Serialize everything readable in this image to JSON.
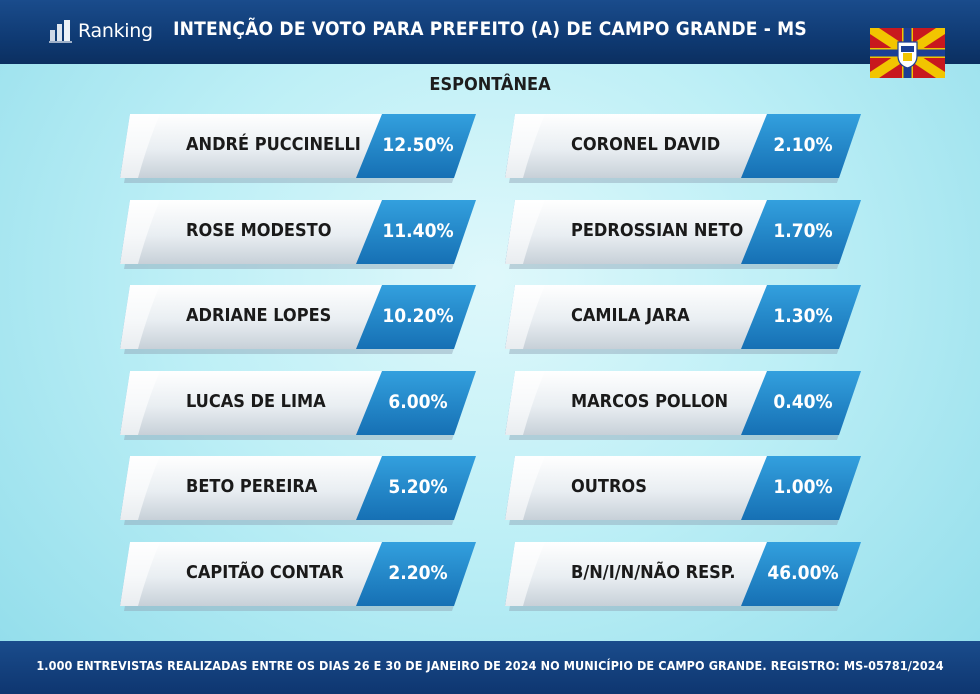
{
  "header": {
    "logo_text": "Ranking",
    "title": "INTENÇÃO DE VOTO PARA PREFEITO (A) DE CAMPO GRANDE - MS"
  },
  "chart_data": {
    "type": "table",
    "title": "INTENÇÃO DE VOTO PARA PREFEITO (A) DE CAMPO GRANDE - MS",
    "subtitle": "ESPONTÂNEA",
    "columns": [
      [
        {
          "name": "ANDRÉ PUCCINELLI",
          "value": 12.5,
          "label": "12.50%"
        },
        {
          "name": "ROSE MODESTO",
          "value": 11.4,
          "label": "11.40%"
        },
        {
          "name": "ADRIANE LOPES",
          "value": 10.2,
          "label": "10.20%"
        },
        {
          "name": "LUCAS DE LIMA",
          "value": 6.0,
          "label": "6.00%"
        },
        {
          "name": "BETO PEREIRA",
          "value": 5.2,
          "label": "5.20%"
        },
        {
          "name": "CAPITÃO CONTAR",
          "value": 2.2,
          "label": "2.20%"
        }
      ],
      [
        {
          "name": "CORONEL DAVID",
          "value": 2.1,
          "label": "2.10%"
        },
        {
          "name": "PEDROSSIAN NETO",
          "value": 1.7,
          "label": "1.70%"
        },
        {
          "name": "CAMILA JARA",
          "value": 1.3,
          "label": "1.30%"
        },
        {
          "name": "MARCOS POLLON",
          "value": 0.4,
          "label": "0.40%"
        },
        {
          "name": "OUTROS",
          "value": 1.0,
          "label": "1.00%"
        },
        {
          "name": "B/N/I/N/NÃO RESP.",
          "value": 46.0,
          "label": "46.00%"
        }
      ]
    ]
  },
  "footer": {
    "text": "1.000 ENTREVISTAS REALIZADAS ENTRE OS DIAS 26 E 30 DE JANEIRO DE 2024 NO MUNICÍPIO DE CAMPO GRANDE. REGISTRO: MS-05781/2024"
  },
  "colors": {
    "header_bg": "#0f3a73",
    "value_blue": "#1b82c6",
    "label_silver": "#e8eef2",
    "text_dark": "#1a1a1a"
  },
  "icons": [
    "ranking-logo-icon",
    "campo-grande-flag-icon"
  ]
}
